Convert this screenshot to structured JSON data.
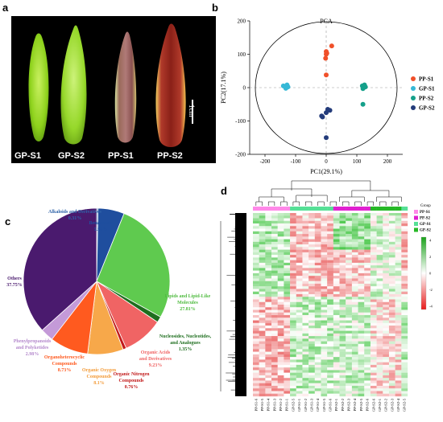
{
  "panels": {
    "a": "a",
    "b": "b",
    "c": "c",
    "d": "d"
  },
  "photo": {
    "labels": [
      "GP-S1",
      "GP-S2",
      "PP-S1",
      "PP-S2"
    ],
    "scale_bar": "1cm"
  },
  "pca": {
    "title": "PCA",
    "xlabel": "PC1(29.1%)",
    "ylabel": "PC2(17.1%)",
    "xticks": [
      "-200",
      "-100",
      "0",
      "100",
      "200"
    ],
    "yticks": [
      "200",
      "100",
      "0",
      "-100",
      "-200"
    ]
  },
  "pie": {
    "alkaloids": {
      "name": "Alkaloids and Derivatives",
      "pct": "0.31%"
    },
    "benzenoids": {
      "name": "Benzenoids",
      "pct": "5.98%"
    },
    "lipids": {
      "line1": "Lipids and Lipid-Like",
      "line2": "Molecules",
      "pct": "27.81%"
    },
    "nucleosides": {
      "line1": "Nucleosides, Nucleotides,",
      "line2": "and Analogues",
      "pct": "1.35%"
    },
    "organic_acids": {
      "line1": "Organic Acids",
      "line2": "and Derivatives",
      "pct": "9.23%"
    },
    "organic_nitrogen": {
      "line1": "Organic Nitrogen",
      "line2": "Compounds",
      "pct": "0.76%"
    },
    "organic_oxygen": {
      "line1": "Organic Oxygen",
      "line2": "Compounds",
      "pct": "8.1%"
    },
    "organoheterocyclic": {
      "line1": "Organoheterocyclic",
      "line2": "Compounds",
      "pct": "8.73%"
    },
    "phenylpropanoids": {
      "line1": "Phenylpropanoids",
      "line2": "and Polyketides",
      "pct": "2.98%"
    },
    "others": {
      "name": "Others",
      "pct": "37.75%"
    }
  },
  "heatmap": {
    "group_label": "Group",
    "legend": [
      "PP-S1",
      "PP-S2",
      "GP-S1",
      "GP-S2"
    ],
    "colorbar_ticks": [
      "4",
      "2",
      "0",
      "-2",
      "-4"
    ],
    "columns": [
      "PP-S1-6",
      "PP-S1-5",
      "PP-S1-4",
      "PP-S1-3",
      "PP-S1-2",
      "PP-S1-1",
      "GP-S2-5",
      "GP-S1-1",
      "GP-S1-2",
      "GP-S1-3",
      "GP-S1-4",
      "GP-S1-5",
      "GP-S1-6",
      "PP-S2-1",
      "PP-S2-2",
      "PP-S2-3",
      "PP-S2-4",
      "PP-S2-5",
      "PP-S2-6",
      "GP-S2-6",
      "GP-S2-1",
      "GP-S2-2",
      "GP-S2-3",
      "GP-S2-4",
      "GP-S2-5"
    ]
  },
  "chart_data": [
    {
      "type": "scatter",
      "title": "PCA",
      "xlabel": "PC1(29.1%)",
      "ylabel": "PC2(17.1%)",
      "xlim": [
        -250,
        250
      ],
      "ylim": [
        -200,
        200
      ],
      "legend_position": "right",
      "series": [
        {
          "name": "PP-S1",
          "color": "#f0502a",
          "points": [
            [
              0,
              100
            ],
            [
              0,
              108
            ],
            [
              2,
              103
            ],
            [
              -2,
              88
            ],
            [
              0,
              38
            ],
            [
              18,
              125
            ]
          ]
        },
        {
          "name": "GP-S1",
          "color": "#36b8d6",
          "points": [
            [
              -140,
              5
            ],
            [
              -135,
              3
            ],
            [
              -130,
              0
            ],
            [
              -128,
              8
            ],
            [
              -125,
              2
            ],
            [
              -132,
              -2
            ]
          ]
        },
        {
          "name": "PP-S2",
          "color": "#15a08a",
          "points": [
            [
              118,
              5
            ],
            [
              120,
              -3
            ],
            [
              122,
              0
            ],
            [
              125,
              8
            ],
            [
              128,
              2
            ],
            [
              120,
              -50
            ]
          ]
        },
        {
          "name": "GP-S2",
          "color": "#233b7a",
          "points": [
            [
              -15,
              -85
            ],
            [
              -12,
              -88
            ],
            [
              0,
              -75
            ],
            [
              5,
              -65
            ],
            [
              12,
              -68
            ],
            [
              0,
              -150
            ]
          ]
        }
      ]
    },
    {
      "type": "pie",
      "labels": [
        "Alkaloids and Derivatives",
        "Benzenoids",
        "Lipids and Lipid-Like Molecules",
        "Nucleosides, Nucleotides, and Analogues",
        "Organic Acids and Derivatives",
        "Organic Nitrogen Compounds",
        "Organic Oxygen Compounds",
        "Organoheterocyclic Compounds",
        "Phenylpropanoids and Polyketides",
        "Others"
      ],
      "values": [
        0.31,
        5.98,
        27.81,
        1.35,
        9.23,
        0.76,
        8.1,
        8.73,
        2.98,
        37.75
      ],
      "colors": [
        "#2f63a8",
        "#1f4e9e",
        "#5fca4f",
        "#1e6e1e",
        "#f06464",
        "#c21a1a",
        "#f7a84a",
        "#ff5a1f",
        "#c49ad8",
        "#4a1a6e"
      ]
    },
    {
      "type": "heatmap",
      "columns": [
        "PP-S1-6",
        "PP-S1-5",
        "PP-S1-4",
        "PP-S1-3",
        "PP-S1-2",
        "PP-S1-1",
        "GP-S2-5",
        "GP-S1-1",
        "GP-S1-2",
        "GP-S1-3",
        "GP-S1-4",
        "GP-S1-5",
        "GP-S1-6",
        "PP-S2-1",
        "PP-S2-2",
        "PP-S2-3",
        "PP-S2-4",
        "PP-S2-5",
        "PP-S2-6",
        "GP-S2-6",
        "GP-S2-1",
        "GP-S2-2",
        "GP-S2-3",
        "GP-S2-4",
        "GP-S2-5"
      ],
      "groups": [
        {
          "name": "PP-S1",
          "color": "#ff88e8"
        },
        {
          "name": "PP-S2",
          "color": "#e020d0"
        },
        {
          "name": "GP-S1",
          "color": "#56e096"
        },
        {
          "name": "GP-S2",
          "color": "#26b826"
        }
      ],
      "value_range": [
        -4,
        4
      ],
      "colors": {
        "high": "#1aa21a",
        "mid": "#ffffff",
        "low": "#e81c1c"
      }
    }
  ]
}
